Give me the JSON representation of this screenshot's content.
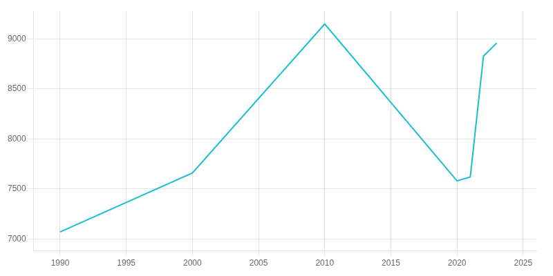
{
  "chart_data": {
    "type": "line",
    "x": [
      1990,
      2000,
      2010,
      2020,
      2021,
      2022,
      2023
    ],
    "values": [
      7070,
      7660,
      9150,
      7580,
      7620,
      8830,
      8960
    ],
    "color": "#17BECF",
    "xlim": [
      1988,
      2026
    ],
    "ylim": [
      6880,
      9280
    ],
    "xticks": [
      1990,
      1995,
      2000,
      2005,
      2010,
      2015,
      2020,
      2025
    ],
    "yticks": [
      7000,
      7500,
      8000,
      8500,
      9000
    ],
    "grid": true
  }
}
